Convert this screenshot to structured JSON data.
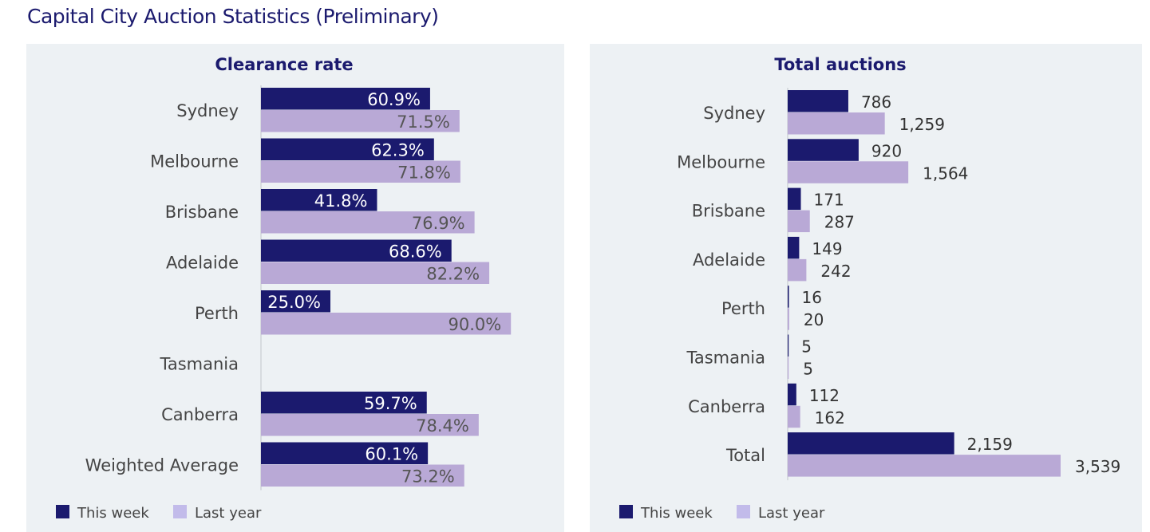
{
  "title": "Capital City Auction Statistics (Preliminary)",
  "colors": {
    "this_week": "#1b1a6e",
    "last_year": "#b9a9d6",
    "legend_last_year": "#c2bbea",
    "panel_bg": "#edf1f4"
  },
  "chart_data": [
    {
      "type": "bar",
      "orientation": "horizontal",
      "title": "Clearance rate",
      "categories": [
        "Sydney",
        "Melbourne",
        "Brisbane",
        "Adelaide",
        "Perth",
        "Tasmania",
        "Canberra",
        "Weighted Average"
      ],
      "series": [
        {
          "name": "This week",
          "values": [
            60.9,
            62.3,
            41.8,
            68.6,
            25.0,
            null,
            59.7,
            60.1
          ],
          "labels": [
            "60.9%",
            "62.3%",
            "41.8%",
            "68.6%",
            "25.0%",
            "",
            "59.7%",
            "60.1%"
          ]
        },
        {
          "name": "Last year",
          "values": [
            71.5,
            71.8,
            76.9,
            82.2,
            90.0,
            null,
            78.4,
            73.2
          ],
          "labels": [
            "71.5%",
            "71.8%",
            "76.9%",
            "82.2%",
            "90.0%",
            "",
            "78.4%",
            "73.2%"
          ]
        }
      ],
      "xlim": [
        0,
        100
      ],
      "legend": "bottom-left"
    },
    {
      "type": "bar",
      "orientation": "horizontal",
      "title": "Total auctions",
      "categories": [
        "Sydney",
        "Melbourne",
        "Brisbane",
        "Adelaide",
        "Perth",
        "Tasmania",
        "Canberra",
        "Total"
      ],
      "series": [
        {
          "name": "This week",
          "values": [
            786,
            920,
            171,
            149,
            16,
            5,
            112,
            2159
          ],
          "labels": [
            "786",
            "920",
            "171",
            "149",
            "16",
            "5",
            "112",
            "2,159"
          ]
        },
        {
          "name": "Last year",
          "values": [
            1259,
            1564,
            287,
            242,
            20,
            5,
            162,
            3539
          ],
          "labels": [
            "1,259",
            "1,564",
            "287",
            "242",
            "20",
            "5",
            "162",
            "3,539"
          ]
        }
      ],
      "xlim": [
        0,
        3539
      ],
      "legend": "bottom-left"
    }
  ]
}
